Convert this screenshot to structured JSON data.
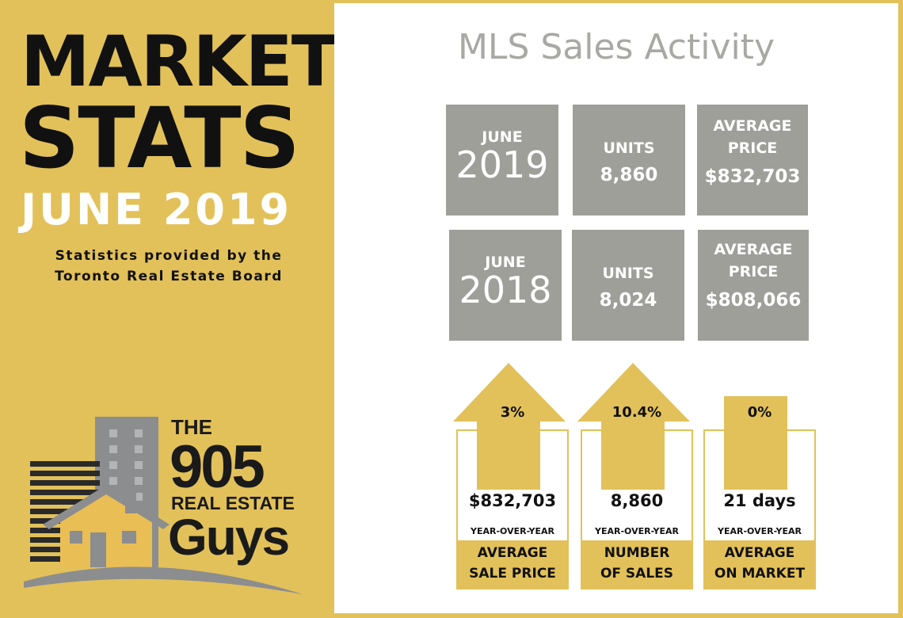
{
  "left": {
    "title_line1": "MARKET",
    "title_line2": "STATS",
    "title_line3": "JUNE 2019",
    "source_line1": "Statistics provided by the",
    "source_line2": "Toronto Real Estate Board",
    "logo": {
      "the": "THE",
      "number": "905",
      "real_estate": "REAL ESTATE",
      "guys": "Guys",
      "icon": "house-and-buildings-logo"
    }
  },
  "right": {
    "title": "MLS Sales Activity",
    "rows": [
      {
        "month": "JUNE",
        "year": "2019",
        "units_label": "UNITS",
        "units": "8,860",
        "price_label_1": "AVERAGE",
        "price_label_2": "PRICE",
        "price": "$832,703"
      },
      {
        "month": "JUNE",
        "year": "2018",
        "units_label": "UNITS",
        "units": "8,024",
        "price_label_1": "AVERAGE",
        "price_label_2": "PRICE",
        "price": "$808,066"
      }
    ],
    "stats": [
      {
        "change": "3%",
        "value": "$832,703",
        "period": "YEAR-OVER-YEAR",
        "label_1": "AVERAGE",
        "label_2": "SALE PRICE",
        "icon": "up-arrow-icon"
      },
      {
        "change": "10.4%",
        "value": "8,860",
        "period": "YEAR-OVER-YEAR",
        "label_1": "NUMBER",
        "label_2": "OF SALES",
        "icon": "up-arrow-icon"
      },
      {
        "change": "0%",
        "value": "21 days",
        "period": "YEAR-OVER-YEAR",
        "label_1": "AVERAGE",
        "label_2": "ON MARKET",
        "icon": "flat-square-icon"
      }
    ]
  },
  "colors": {
    "gold": "#e2c15a",
    "grey_box": "#9e9f99",
    "title_grey": "#a8a8a4",
    "text_dark": "#111111"
  }
}
